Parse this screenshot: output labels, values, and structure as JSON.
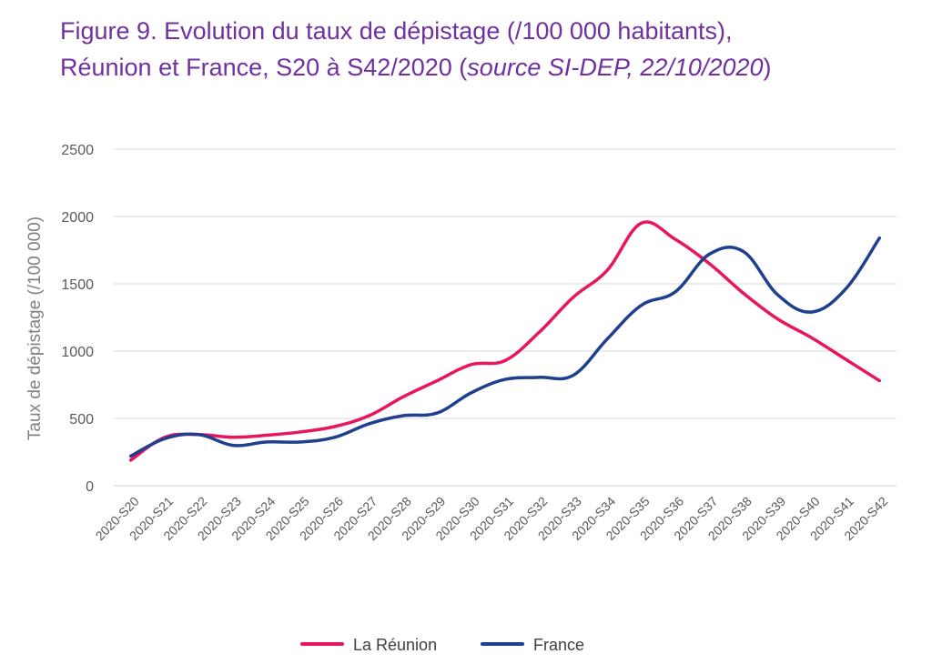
{
  "figure": {
    "label": "Figure 9",
    "title_part1": ". Evolution du taux de dépistage (/100 000 habitants),",
    "title_part2": "Réunion et France, S20 à S42/2020 (",
    "title_source": "source SI-DEP, 22/10/2020",
    "title_close": ")"
  },
  "chart_data": {
    "type": "line",
    "xlabel": "",
    "ylabel": "Taux de dépistage (/100 000)",
    "ylim": [
      0,
      2500
    ],
    "yticks": [
      0,
      500,
      1000,
      1500,
      2000,
      2500
    ],
    "grid": true,
    "legend_position": "bottom",
    "categories": [
      "2020-S20",
      "2020-S21",
      "2020-S22",
      "2020-S23",
      "2020-S24",
      "2020-S25",
      "2020-S26",
      "2020-S27",
      "2020-S28",
      "2020-S29",
      "2020-S30",
      "2020-S31",
      "2020-S32",
      "2020-S33",
      "2020-S34",
      "2020-S35",
      "2020-S36",
      "2020-S37",
      "2020-S38",
      "2020-S39",
      "2020-S40",
      "2020-S41",
      "2020-S42"
    ],
    "series": [
      {
        "name": "La Réunion",
        "color": "#e8175d",
        "values": [
          190,
          360,
          380,
          360,
          375,
          400,
          440,
          520,
          660,
          780,
          900,
          930,
          1140,
          1400,
          1600,
          1950,
          1830,
          1650,
          1430,
          1240,
          1100,
          940,
          780
        ]
      },
      {
        "name": "France",
        "color": "#1f3f8f",
        "values": [
          220,
          350,
          380,
          300,
          325,
          325,
          360,
          460,
          520,
          540,
          690,
          790,
          805,
          820,
          1090,
          1340,
          1440,
          1720,
          1740,
          1420,
          1290,
          1460,
          1840
        ]
      }
    ]
  }
}
